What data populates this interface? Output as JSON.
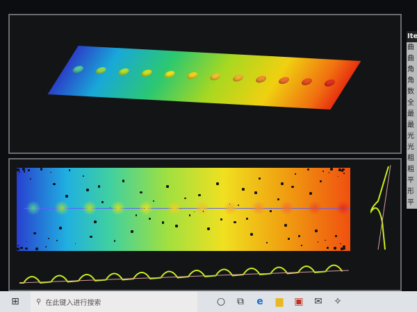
{
  "side_list": {
    "header": "Ite",
    "items": [
      "曲",
      "曲",
      "角",
      "角",
      "数",
      "全",
      "最",
      "最",
      "光",
      "光",
      "粗",
      "粗",
      "平",
      "形",
      "平"
    ]
  },
  "taskbar": {
    "search_placeholder": "在此键入进行搜索",
    "icons": [
      "windows-start",
      "search",
      "cortana",
      "task-view",
      "edge",
      "file-explorer",
      "store",
      "mail",
      "app"
    ]
  },
  "colors": {
    "background": "#0c0d10",
    "profile_line": "#c8f020",
    "taskbar": "#dfe3e8"
  }
}
